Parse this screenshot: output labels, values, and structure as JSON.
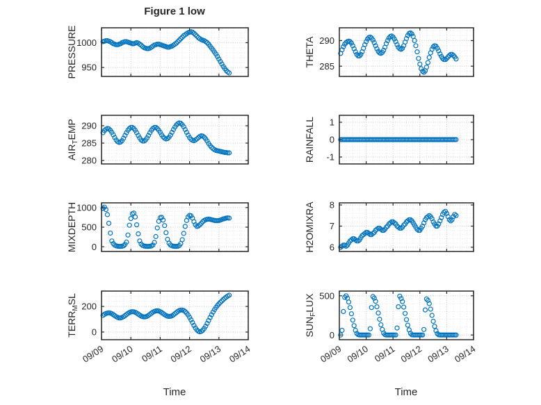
{
  "figure": {
    "title": "Figure 1 low",
    "time_label": "Time"
  },
  "colors": {
    "marker": "#0072BD",
    "axis": "#262626",
    "grid_major": "#c4c4c4",
    "grid_minor": "#e3e3e3",
    "background": "#ffffff"
  },
  "chart_data": {
    "type": "scatter",
    "title": "Figure 1 low",
    "xlabel": "Time",
    "x_tick_labels": [
      "09/09",
      "09/10",
      "09/11",
      "09/12",
      "09/13",
      "09/14"
    ],
    "x_range_days": [
      0,
      5
    ],
    "marker": "o",
    "grid": "major+minor dotted",
    "t": [
      0.05,
      0.1,
      0.15,
      0.2,
      0.25,
      0.3,
      0.35,
      0.4,
      0.45,
      0.5,
      0.55,
      0.6,
      0.65,
      0.7,
      0.75,
      0.8,
      0.85,
      0.9,
      0.95,
      1.0,
      1.05,
      1.1,
      1.15,
      1.2,
      1.25,
      1.3,
      1.35,
      1.4,
      1.45,
      1.5,
      1.55,
      1.6,
      1.65,
      1.7,
      1.75,
      1.8,
      1.85,
      1.9,
      1.95,
      2.0,
      2.05,
      2.1,
      2.15,
      2.2,
      2.25,
      2.3,
      2.35,
      2.4,
      2.45,
      2.5,
      2.55,
      2.6,
      2.65,
      2.7,
      2.75,
      2.8,
      2.85,
      2.9,
      2.95,
      3.0,
      3.05,
      3.1,
      3.15,
      3.2,
      3.25,
      3.3,
      3.35,
      3.4,
      3.45,
      3.5,
      3.55,
      3.6,
      3.65,
      3.7,
      3.75,
      3.8,
      3.85,
      3.9,
      3.95,
      4.0,
      4.05,
      4.1,
      4.15,
      4.2,
      4.25,
      4.3,
      4.35
    ],
    "subplots": [
      {
        "name": "PRESSURE",
        "parts": [
          {
            "t": "PRESSURE"
          }
        ],
        "row": 0,
        "col": 0,
        "ylim": [
          932,
          1030
        ],
        "yticks": [
          950,
          1000
        ],
        "yminor": 10,
        "values": [
          1002,
          1003,
          1004,
          1004,
          1003,
          1002,
          1000,
          998,
          997,
          996,
          996,
          997,
          998,
          1000,
          1001,
          1002,
          1002,
          1001,
          1000,
          999,
          998,
          998,
          999,
          1000,
          999,
          997,
          995,
          992,
          990,
          989,
          988,
          988,
          989,
          991,
          993,
          995,
          996,
          997,
          997,
          996,
          995,
          994,
          993,
          992,
          991,
          991,
          992,
          993,
          995,
          997,
          999,
          1002,
          1005,
          1008,
          1011,
          1014,
          1016,
          1018,
          1020,
          1021,
          1022,
          1021,
          1019,
          1016,
          1013,
          1010,
          1008,
          1006,
          1005,
          1004,
          1002,
          1000,
          997,
          993,
          989,
          985,
          981,
          977,
          972,
          967,
          962,
          957,
          952,
          948,
          944,
          941,
          939
        ]
      },
      {
        "name": "AIR_TEMP",
        "parts": [
          {
            "t": "AIR"
          },
          {
            "t": "T",
            "sub": true
          },
          {
            "t": "EMP"
          }
        ],
        "row": 1,
        "col": 0,
        "ylim": [
          279,
          293
        ],
        "yticks": [
          280,
          285,
          290
        ],
        "yminor": 1,
        "values": [
          288.0,
          288.6,
          289.0,
          289.2,
          289.1,
          288.7,
          288.1,
          287.4,
          286.6,
          285.9,
          285.4,
          285.2,
          285.3,
          285.7,
          286.4,
          287.2,
          288.0,
          288.7,
          289.2,
          289.5,
          289.5,
          289.2,
          288.7,
          288.0,
          287.2,
          286.5,
          285.9,
          285.6,
          285.6,
          285.9,
          286.5,
          287.2,
          288.0,
          288.7,
          289.2,
          289.5,
          289.5,
          289.2,
          288.7,
          288.1,
          287.4,
          286.8,
          286.4,
          286.2,
          286.3,
          286.7,
          287.3,
          288.1,
          288.9,
          289.6,
          290.2,
          290.6,
          290.8,
          290.7,
          290.3,
          289.7,
          288.9,
          288.1,
          287.3,
          286.6,
          286.1,
          285.8,
          285.7,
          285.9,
          286.2,
          286.6,
          286.9,
          287.1,
          287.0,
          286.7,
          286.2,
          285.6,
          284.9,
          284.3,
          283.8,
          283.4,
          283.1,
          282.9,
          282.8,
          282.7,
          282.6,
          282.5,
          282.4,
          282.3,
          282.3,
          282.2,
          282.2
        ]
      },
      {
        "name": "MIXDEPTH",
        "parts": [
          {
            "t": "MIXDEPTH"
          }
        ],
        "row": 2,
        "col": 0,
        "ylim": [
          -120,
          1120
        ],
        "yticks": [
          0,
          500,
          1000
        ],
        "yminor": 100,
        "values": [
          980,
          1010,
          950,
          820,
          600,
          350,
          150,
          80,
          40,
          25,
          15,
          10,
          10,
          15,
          25,
          60,
          120,
          300,
          550,
          720,
          840,
          860,
          760,
          560,
          330,
          150,
          70,
          35,
          20,
          12,
          10,
          10,
          12,
          20,
          45,
          110,
          260,
          480,
          650,
          740,
          750,
          680,
          540,
          360,
          190,
          90,
          45,
          25,
          15,
          10,
          10,
          15,
          30,
          80,
          180,
          340,
          520,
          670,
          760,
          800,
          790,
          730,
          640,
          560,
          520,
          530,
          560,
          600,
          640,
          670,
          690,
          700,
          705,
          700,
          690,
          680,
          670,
          665,
          665,
          670,
          680,
          695,
          710,
          720,
          730,
          735,
          730
        ]
      },
      {
        "name": "TERR_MSL",
        "parts": [
          {
            "t": "TERR"
          },
          {
            "t": "M",
            "sub": true
          },
          {
            "t": "SL"
          }
        ],
        "row": 3,
        "col": 0,
        "ylim": [
          -60,
          320
        ],
        "yticks": [
          0,
          200
        ],
        "yminor": 40,
        "values": [
          130,
          138,
          144,
          148,
          150,
          148,
          143,
          136,
          128,
          120,
          114,
          110,
          110,
          114,
          120,
          128,
          137,
          145,
          152,
          157,
          159,
          158,
          154,
          148,
          140,
          132,
          125,
          120,
          118,
          119,
          123,
          130,
          138,
          147,
          155,
          161,
          165,
          166,
          164,
          159,
          152,
          144,
          136,
          129,
          124,
          122,
          123,
          127,
          134,
          143,
          152,
          161,
          168,
          172,
          172,
          168,
          160,
          148,
          133,
          115,
          95,
          74,
          52,
          32,
          16,
          6,
          2,
          5,
          14,
          28,
          46,
          67,
          90,
          113,
          135,
          156,
          175,
          192,
          207,
          220,
          232,
          243,
          254,
          264,
          273,
          281,
          288
        ]
      },
      {
        "name": "THETA",
        "parts": [
          {
            "t": "THETA"
          }
        ],
        "row": 0,
        "col": 1,
        "ylim": [
          283,
          292.5
        ],
        "yticks": [
          285,
          290
        ],
        "yminor": 1,
        "values": [
          287.5,
          288.2,
          288.8,
          289.3,
          289.6,
          289.8,
          289.9,
          289.8,
          289.5,
          289.0,
          288.4,
          287.8,
          287.3,
          287.0,
          287.0,
          287.3,
          287.8,
          288.5,
          289.2,
          289.8,
          290.3,
          290.6,
          290.7,
          290.5,
          290.1,
          289.6,
          289.0,
          288.4,
          287.9,
          287.6,
          287.5,
          287.7,
          288.1,
          288.7,
          289.4,
          290.0,
          290.5,
          290.8,
          290.9,
          290.7,
          290.3,
          289.8,
          289.2,
          288.7,
          288.4,
          288.3,
          288.5,
          289.0,
          289.7,
          290.4,
          291.0,
          291.4,
          291.5,
          291.3,
          290.8,
          290.0,
          289.0,
          287.8,
          286.5,
          285.4,
          284.5,
          284.0,
          283.8,
          284.1,
          284.8,
          285.7,
          286.7,
          287.6,
          288.3,
          288.8,
          289.0,
          288.9,
          288.5,
          288.0,
          287.4,
          286.9,
          286.5,
          286.3,
          286.3,
          286.5,
          286.8,
          287.1,
          287.3,
          287.3,
          287.1,
          286.8,
          286.4
        ]
      },
      {
        "name": "RAINFALL",
        "parts": [
          {
            "t": "RAINFALL"
          }
        ],
        "row": 1,
        "col": 1,
        "ylim": [
          -1.4,
          1.4
        ],
        "yticks": [
          -1,
          0,
          1
        ],
        "yminor": 0.2,
        "values": [
          0,
          0,
          0,
          0,
          0,
          0,
          0,
          0,
          0,
          0,
          0,
          0,
          0,
          0,
          0,
          0,
          0,
          0,
          0,
          0,
          0,
          0,
          0,
          0,
          0,
          0,
          0,
          0,
          0,
          0,
          0,
          0,
          0,
          0,
          0,
          0,
          0,
          0,
          0,
          0,
          0,
          0,
          0,
          0,
          0,
          0,
          0,
          0,
          0,
          0,
          0,
          0,
          0,
          0,
          0,
          0,
          0,
          0,
          0,
          0,
          0,
          0,
          0,
          0,
          0,
          0,
          0,
          0,
          0,
          0,
          0,
          0,
          0,
          0,
          0,
          0,
          0,
          0,
          0,
          0,
          0,
          0,
          0,
          0,
          0,
          0,
          0
        ]
      },
      {
        "name": "H2OMIXRA",
        "parts": [
          {
            "t": "H2OMIXRA"
          }
        ],
        "row": 2,
        "col": 1,
        "ylim": [
          5.8,
          8.1
        ],
        "yticks": [
          6,
          7,
          8
        ],
        "yminor": 0.2,
        "values": [
          6.0,
          6.05,
          6.1,
          6.1,
          6.05,
          6.1,
          6.2,
          6.3,
          6.35,
          6.4,
          6.4,
          6.35,
          6.3,
          6.3,
          6.35,
          6.45,
          6.55,
          6.6,
          6.65,
          6.7,
          6.7,
          6.65,
          6.6,
          6.6,
          6.65,
          6.7,
          6.8,
          6.85,
          6.9,
          6.9,
          6.85,
          6.8,
          6.8,
          6.85,
          6.95,
          7.0,
          7.1,
          7.15,
          7.2,
          7.2,
          7.15,
          7.1,
          7.0,
          6.95,
          6.9,
          6.9,
          6.95,
          7.05,
          7.1,
          7.2,
          7.25,
          7.3,
          7.3,
          7.25,
          7.15,
          7.05,
          6.95,
          6.85,
          6.8,
          6.8,
          6.9,
          7.0,
          7.15,
          7.3,
          7.4,
          7.45,
          7.5,
          7.45,
          7.35,
          7.2,
          7.1,
          7.0,
          7.0,
          7.1,
          7.25,
          7.4,
          7.55,
          7.65,
          7.7,
          7.6,
          7.45,
          7.3,
          7.25,
          7.3,
          7.45,
          7.55,
          7.5
        ]
      },
      {
        "name": "SUN_FLUX",
        "parts": [
          {
            "t": "SUN"
          },
          {
            "t": "F",
            "sub": true
          },
          {
            "t": "LUX"
          }
        ],
        "row": 3,
        "col": 1,
        "ylim": [
          -60,
          560
        ],
        "yticks": [
          0,
          500
        ],
        "yminor": 100,
        "values": [
          0,
          60,
          300,
          480,
          500,
          470,
          420,
          350,
          270,
          190,
          120,
          60,
          20,
          5,
          0,
          0,
          0,
          0,
          0,
          0,
          0,
          0,
          80,
          350,
          490,
          470,
          430,
          360,
          280,
          200,
          130,
          70,
          25,
          5,
          0,
          0,
          0,
          0,
          0,
          0,
          0,
          0,
          90,
          360,
          495,
          465,
          425,
          355,
          275,
          195,
          125,
          65,
          22,
          4,
          0,
          0,
          0,
          0,
          0,
          0,
          0,
          0,
          70,
          320,
          460,
          440,
          400,
          330,
          250,
          175,
          110,
          55,
          18,
          3,
          0,
          0,
          0,
          0,
          0,
          0,
          0,
          0,
          0,
          0,
          0,
          0,
          0
        ]
      }
    ]
  }
}
